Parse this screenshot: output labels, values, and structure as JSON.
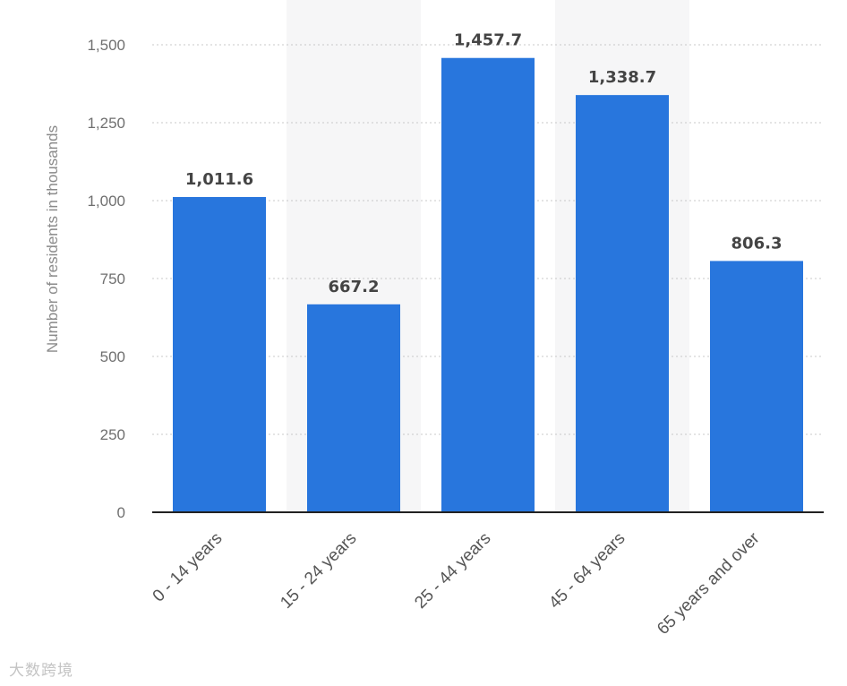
{
  "chart_data": {
    "type": "bar",
    "categories": [
      "0 - 14 years",
      "15 - 24 years",
      "25 - 44 years",
      "45 - 64 years",
      "65 years and over"
    ],
    "values": [
      1011.6,
      667.2,
      1457.7,
      1338.7,
      806.3
    ],
    "value_labels": [
      "1,011.6",
      "667.2",
      "1,457.7",
      "1,338.7",
      "806.3"
    ],
    "title": "",
    "xlabel": "",
    "ylabel": "Number of residents in thousands",
    "ylim": [
      0,
      1500
    ],
    "yticks": [
      0,
      250,
      500,
      750,
      1000,
      1250,
      1500
    ],
    "ytick_labels": [
      "0",
      "250",
      "500",
      "750",
      "1,000",
      "1,250",
      "1,500"
    ],
    "grid": true,
    "legend": "none",
    "bar_color": "#2876dd"
  },
  "watermark": "大数跨境"
}
